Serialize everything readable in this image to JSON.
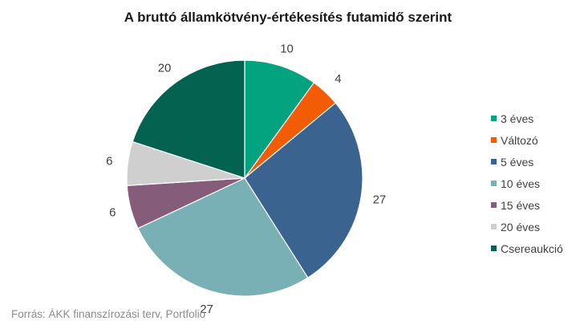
{
  "chart_data": {
    "type": "pie",
    "title": "A bruttó államkötvény-értékesítés futamidő szerint",
    "categories": [
      "3 éves",
      "Változó",
      "5 éves",
      "10 éves",
      "15 éves",
      "20 éves",
      "Csereaukció"
    ],
    "values": [
      10,
      4,
      27,
      27,
      6,
      6,
      20
    ],
    "colors": [
      "#03a37f",
      "#f25c05",
      "#3b6390",
      "#79b0b5",
      "#855c7a",
      "#cfcfcf",
      "#036350"
    ],
    "legend_position": "right",
    "source": "Forrás: ÁKK finanszírozási terv, Portfolio"
  }
}
